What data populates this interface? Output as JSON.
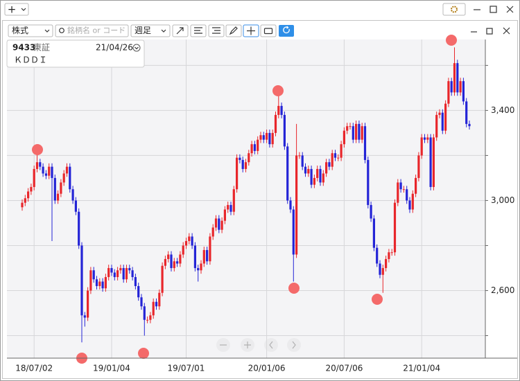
{
  "window": {
    "new_button": "+"
  },
  "toolbar": {
    "market": "株式",
    "search_placeholder": "銘柄名 or コード",
    "interval": "週足"
  },
  "info": {
    "code": "9433",
    "exchange": "東証",
    "date": "21/04/26",
    "name": "ＫＤＤＩ"
  },
  "chart_data": {
    "type": "candlestick",
    "categories": [
      null,
      null,
      null,
      null,
      "18/07/02",
      null,
      null,
      null,
      null,
      null,
      null,
      null,
      null,
      null,
      null,
      null,
      null,
      null,
      null,
      null,
      null,
      null,
      null,
      null,
      null,
      null,
      null,
      null,
      null,
      null,
      "19/01/04",
      null,
      null,
      null,
      null,
      null,
      null,
      null,
      null,
      null,
      null,
      null,
      null,
      null,
      null,
      null,
      null,
      null,
      null,
      null,
      null,
      null,
      null,
      null,
      null,
      "19/07/01",
      null,
      null,
      null,
      null,
      null,
      null,
      null,
      null,
      null,
      null,
      null,
      null,
      null,
      null,
      null,
      null,
      null,
      null,
      null,
      null,
      null,
      null,
      null,
      null,
      null,
      null,
      "20/01/06",
      null,
      null,
      null,
      null,
      null,
      null,
      null,
      null,
      null,
      null,
      null,
      null,
      null,
      null,
      null,
      null,
      null,
      null,
      null,
      null,
      null,
      null,
      null,
      null,
      null,
      "20/07/06",
      null,
      null,
      null,
      null,
      null,
      null,
      null,
      null,
      null,
      null,
      null,
      null,
      null,
      null,
      null,
      null,
      null,
      null,
      null,
      null,
      null,
      null,
      null,
      null,
      null,
      "21/01/04",
      null,
      null,
      null,
      null,
      null,
      null,
      null,
      null,
      null,
      null,
      null,
      null,
      null,
      null,
      null,
      null
    ],
    "open": [
      2970,
      2990,
      3010,
      3040,
      3060,
      3140,
      3170,
      3150,
      3120,
      3110,
      3150,
      3100,
      3000,
      3030,
      3080,
      3120,
      3150,
      3050,
      3000,
      2950,
      2800,
      2490,
      2480,
      2600,
      2690,
      2650,
      2620,
      2640,
      2610,
      2660,
      2700,
      2680,
      2660,
      2690,
      2700,
      2650,
      2700,
      2690,
      2660,
      2620,
      2570,
      2530,
      2470,
      2470,
      2490,
      2550,
      2530,
      2590,
      2710,
      2740,
      2760,
      2700,
      2730,
      2720,
      2760,
      2800,
      2820,
      2840,
      2800,
      2700,
      2690,
      2720,
      2780,
      2730,
      2840,
      2880,
      2920,
      2870,
      2910,
      2960,
      2980,
      2950,
      3050,
      3190,
      3180,
      3140,
      3170,
      3210,
      3250,
      3220,
      3270,
      3290,
      3270,
      3300,
      3250,
      3300,
      3380,
      3420,
      3380,
      3240,
      3000,
      2960,
      2760,
      3200,
      3200,
      3150,
      3120,
      3140,
      3070,
      3100,
      3140,
      3080,
      3120,
      3170,
      3150,
      3210,
      3190,
      3190,
      3250,
      3310,
      3330,
      3330,
      3270,
      3340,
      3270,
      3330,
      3180,
      2980,
      2920,
      2790,
      2720,
      2670,
      2700,
      2740,
      2770,
      2770,
      2990,
      3080,
      3050,
      3050,
      3000,
      2960,
      3030,
      3100,
      3200,
      3280,
      3270,
      3280,
      3060,
      3280,
      3380,
      3390,
      3310,
      3430,
      3530,
      3480,
      3610,
      3480,
      3530,
      3440,
      3340
    ],
    "high": [
      3005,
      3025,
      3055,
      3075,
      3155,
      3220,
      3185,
      3165,
      3135,
      3165,
      3165,
      3115,
      3045,
      3095,
      3135,
      3165,
      3165,
      3065,
      3015,
      2965,
      2815,
      2505,
      2615,
      2705,
      2705,
      2665,
      2655,
      2655,
      2675,
      2715,
      2715,
      2695,
      2705,
      2715,
      2715,
      2715,
      2715,
      2705,
      2675,
      2635,
      2585,
      2545,
      2485,
      2505,
      2565,
      2565,
      2605,
      2725,
      2755,
      2775,
      2775,
      2745,
      2745,
      2775,
      2815,
      2835,
      2855,
      2855,
      2815,
      2715,
      2735,
      2795,
      2795,
      2855,
      2895,
      2935,
      2935,
      2925,
      2975,
      2995,
      2995,
      3065,
      3205,
      3205,
      3195,
      3185,
      3225,
      3265,
      3265,
      3285,
      3305,
      3305,
      3315,
      3315,
      3315,
      3395,
      3470,
      3435,
      3395,
      3255,
      3015,
      2975,
      3340,
      3215,
      3215,
      3165,
      3155,
      3155,
      3115,
      3155,
      3155,
      3135,
      3185,
      3185,
      3225,
      3225,
      3205,
      3265,
      3325,
      3345,
      3345,
      3345,
      3355,
      3355,
      3345,
      3345,
      3195,
      2995,
      2935,
      2805,
      2735,
      2715,
      2755,
      2785,
      2785,
      3005,
      3095,
      3095,
      3065,
      3065,
      3015,
      3045,
      3115,
      3215,
      3295,
      3295,
      3295,
      3295,
      3295,
      3395,
      3405,
      3405,
      3445,
      3545,
      3545,
      3680,
      3625,
      3545,
      3545,
      3455,
      3355
    ],
    "low": [
      2955,
      2975,
      2995,
      3025,
      3045,
      3125,
      3135,
      3105,
      3095,
      3095,
      2820,
      2985,
      2985,
      3015,
      3065,
      3105,
      3035,
      2985,
      2935,
      2785,
      2370,
      2440,
      2465,
      2585,
      2635,
      2605,
      2605,
      2595,
      2595,
      2645,
      2665,
      2645,
      2645,
      2675,
      2635,
      2635,
      2675,
      2645,
      2605,
      2555,
      2515,
      2400,
      2455,
      2455,
      2475,
      2515,
      2515,
      2575,
      2695,
      2725,
      2685,
      2685,
      2705,
      2705,
      2745,
      2785,
      2805,
      2785,
      2685,
      2640,
      2675,
      2705,
      2715,
      2715,
      2825,
      2865,
      2855,
      2855,
      2895,
      2945,
      2935,
      2935,
      3035,
      3165,
      3125,
      3125,
      3155,
      3195,
      3205,
      3205,
      3255,
      3255,
      3255,
      3235,
      3235,
      3285,
      3365,
      3365,
      3225,
      2985,
      2945,
      2640,
      2745,
      3185,
      3135,
      3105,
      3105,
      3055,
      3055,
      3085,
      3065,
      3065,
      3105,
      3135,
      3135,
      3175,
      3175,
      3175,
      3235,
      3295,
      3315,
      3255,
      3255,
      3255,
      3255,
      3165,
      2965,
      2905,
      2775,
      2705,
      2655,
      2590,
      2685,
      2725,
      2755,
      2755,
      2975,
      3035,
      3035,
      2985,
      2945,
      2945,
      3015,
      3085,
      3185,
      3255,
      3255,
      3045,
      3045,
      3265,
      3365,
      3295,
      3295,
      3415,
      3465,
      3465,
      3465,
      3465,
      3425,
      3325,
      3315
    ],
    "close": [
      2990,
      3010,
      3040,
      3060,
      3140,
      3170,
      3150,
      3120,
      3110,
      3150,
      3100,
      3000,
      3030,
      3080,
      3120,
      3150,
      3050,
      3000,
      2950,
      2800,
      2490,
      2480,
      2600,
      2690,
      2650,
      2620,
      2640,
      2610,
      2660,
      2700,
      2680,
      2660,
      2690,
      2700,
      2650,
      2700,
      2690,
      2660,
      2620,
      2570,
      2530,
      2470,
      2470,
      2490,
      2550,
      2530,
      2590,
      2710,
      2740,
      2760,
      2700,
      2730,
      2720,
      2760,
      2800,
      2820,
      2840,
      2800,
      2700,
      2690,
      2720,
      2780,
      2730,
      2840,
      2880,
      2920,
      2870,
      2910,
      2960,
      2980,
      2950,
      3050,
      3190,
      3180,
      3140,
      3170,
      3210,
      3250,
      3220,
      3270,
      3290,
      3270,
      3300,
      3250,
      3300,
      3380,
      3420,
      3380,
      3240,
      3000,
      2960,
      2760,
      3200,
      3200,
      3150,
      3120,
      3140,
      3070,
      3100,
      3140,
      3080,
      3120,
      3170,
      3150,
      3210,
      3190,
      3190,
      3250,
      3310,
      3330,
      3330,
      3270,
      3340,
      3270,
      3330,
      3180,
      2980,
      2920,
      2790,
      2720,
      2670,
      2700,
      2740,
      2770,
      2770,
      2990,
      3080,
      3050,
      3050,
      3000,
      2960,
      3030,
      3100,
      3200,
      3280,
      3270,
      3280,
      3060,
      3280,
      3380,
      3390,
      3310,
      3430,
      3530,
      3480,
      3610,
      3480,
      3530,
      3440,
      3340,
      3330
    ],
    "up_color": "#e8262b",
    "down_color": "#2424d6",
    "ylim": [
      2300,
      3715
    ],
    "yticks": [
      {
        "value": 2400,
        "label": null
      },
      {
        "value": 2600,
        "label": "2,600"
      },
      {
        "value": 2800,
        "label": null
      },
      {
        "value": 3000,
        "label": "3,000"
      },
      {
        "value": 3200,
        "label": null
      },
      {
        "value": 3400,
        "label": "3,400"
      },
      {
        "value": 3600,
        "label": null
      }
    ],
    "grid": true
  }
}
